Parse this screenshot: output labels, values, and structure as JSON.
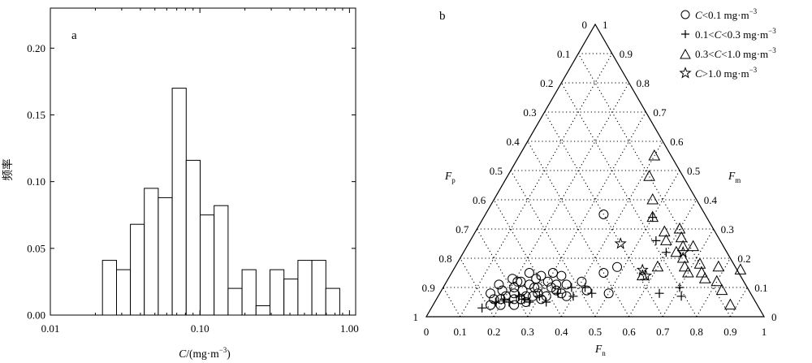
{
  "histogram": {
    "panel_label": "a",
    "ylabel": "频率",
    "xlabel_var": "C",
    "xlabel_unit": "/(mg·m",
    "xlabel_exp": "−3",
    "xlabel_close": ")",
    "y_ticks": [
      "0.00",
      "0.05",
      "0.10",
      "0.15",
      "0.20"
    ],
    "x_ticks": [
      "0.01",
      "0.10",
      "1.00"
    ]
  },
  "ternary": {
    "panel_label": "b",
    "axis_p": "F",
    "axis_p_sub": "p",
    "axis_m": "F",
    "axis_m_sub": "m",
    "axis_n": "F",
    "axis_n_sub": "n",
    "bottom_ticks": [
      "0",
      "0.1",
      "0.2",
      "0.3",
      "0.4",
      "0.5",
      "0.6",
      "0.7",
      "0.8",
      "0.9",
      "1"
    ],
    "left_ticks": [
      "0",
      "0.1",
      "0.2",
      "0.3",
      "0.4",
      "0.5",
      "0.6",
      "0.7",
      "0.8",
      "0.9",
      "1"
    ],
    "right_ticks": [
      "1",
      "0.9",
      "0.8",
      "0.7",
      "0.6",
      "0.5",
      "0.4",
      "0.3",
      "0.2",
      "0.1",
      "0"
    ]
  },
  "legend": [
    {
      "marker": "circle",
      "pre": "",
      "var": "C",
      "post": "<0.1 mg·m",
      "exp": "−3"
    },
    {
      "marker": "plus",
      "pre": "0.1<",
      "var": "C",
      "post": "<0.3 mg·m",
      "exp": "−3"
    },
    {
      "marker": "triangle",
      "pre": "0.3<",
      "var": "C",
      "post": "<1.0 mg·m",
      "exp": "−3"
    },
    {
      "marker": "star",
      "pre": "",
      "var": "C",
      "post": ">1.0 mg·m",
      "exp": "−3"
    }
  ],
  "chart_data": [
    {
      "type": "bar",
      "title": "",
      "xlabel": "C/(mg·m−3)",
      "ylabel": "频率",
      "xscale": "log",
      "xlim": [
        0.01,
        1.1
      ],
      "ylim": [
        0,
        0.23
      ],
      "grid": false,
      "bins": [
        {
          "from": 0.0223,
          "to": 0.0277,
          "value": 0.041
        },
        {
          "from": 0.0277,
          "to": 0.0343,
          "value": 0.034
        },
        {
          "from": 0.0343,
          "to": 0.0425,
          "value": 0.068
        },
        {
          "from": 0.0425,
          "to": 0.0527,
          "value": 0.095
        },
        {
          "from": 0.0527,
          "to": 0.0653,
          "value": 0.088
        },
        {
          "from": 0.0653,
          "to": 0.081,
          "value": 0.17
        },
        {
          "from": 0.081,
          "to": 0.1004,
          "value": 0.116
        },
        {
          "from": 0.1004,
          "to": 0.1245,
          "value": 0.075
        },
        {
          "from": 0.1245,
          "to": 0.1543,
          "value": 0.082
        },
        {
          "from": 0.1543,
          "to": 0.1913,
          "value": 0.02
        },
        {
          "from": 0.1913,
          "to": 0.2372,
          "value": 0.034
        },
        {
          "from": 0.2372,
          "to": 0.2941,
          "value": 0.007
        },
        {
          "from": 0.2941,
          "to": 0.3646,
          "value": 0.034
        },
        {
          "from": 0.3646,
          "to": 0.452,
          "value": 0.027
        },
        {
          "from": 0.452,
          "to": 0.5604,
          "value": 0.041
        },
        {
          "from": 0.5604,
          "to": 0.6947,
          "value": 0.041
        },
        {
          "from": 0.6947,
          "to": 0.8613,
          "value": 0.02
        }
      ]
    },
    {
      "type": "scatter",
      "subtype": "ternary",
      "title": "",
      "axes": [
        "Fn",
        "Fm",
        "Fp"
      ],
      "grid": true,
      "series": [
        {
          "name": "C<0.1 mg·m−3",
          "marker": "circle",
          "points": [
            [
              0.15,
              0.08,
              0.77
            ],
            [
              0.16,
              0.11,
              0.73
            ],
            [
              0.17,
              0.06,
              0.77
            ],
            [
              0.18,
              0.09,
              0.73
            ],
            [
              0.19,
              0.13,
              0.68
            ],
            [
              0.2,
              0.07,
              0.73
            ],
            [
              0.21,
              0.1,
              0.69
            ],
            [
              0.22,
              0.12,
              0.66
            ],
            [
              0.23,
              0.06,
              0.71
            ],
            [
              0.23,
              0.15,
              0.62
            ],
            [
              0.24,
              0.09,
              0.67
            ],
            [
              0.25,
              0.11,
              0.64
            ],
            [
              0.26,
              0.07,
              0.67
            ],
            [
              0.26,
              0.13,
              0.61
            ],
            [
              0.27,
              0.05,
              0.68
            ],
            [
              0.28,
              0.1,
              0.62
            ],
            [
              0.29,
              0.08,
              0.63
            ],
            [
              0.3,
              0.12,
              0.58
            ],
            [
              0.31,
              0.06,
              0.63
            ],
            [
              0.32,
              0.1,
              0.58
            ],
            [
              0.33,
              0.14,
              0.53
            ],
            [
              0.34,
              0.09,
              0.57
            ],
            [
              0.36,
              0.11,
              0.53
            ],
            [
              0.38,
              0.07,
              0.55
            ],
            [
              0.4,
              0.12,
              0.48
            ],
            [
              0.43,
              0.09,
              0.48
            ],
            [
              0.45,
              0.15,
              0.4
            ],
            [
              0.48,
              0.17,
              0.35
            ],
            [
              0.5,
              0.08,
              0.42
            ],
            [
              0.35,
              0.35,
              0.3
            ],
            [
              0.17,
              0.04,
              0.79
            ],
            [
              0.2,
              0.04,
              0.76
            ],
            [
              0.24,
              0.04,
              0.72
            ],
            [
              0.27,
              0.14,
              0.59
            ],
            [
              0.3,
              0.15,
              0.55
            ],
            [
              0.22,
              0.08,
              0.7
            ],
            [
              0.19,
              0.06,
              0.75
            ],
            [
              0.25,
              0.06,
              0.69
            ],
            [
              0.28,
              0.07,
              0.65
            ],
            [
              0.32,
              0.07,
              0.61
            ],
            [
              0.21,
              0.12,
              0.67
            ],
            [
              0.27,
              0.1,
              0.63
            ],
            [
              0.33,
              0.11,
              0.56
            ],
            [
              0.36,
              0.08,
              0.56
            ]
          ]
        },
        {
          "name": "0.1<C<0.3 mg·m−3",
          "marker": "plus",
          "points": [
            [
              0.15,
              0.03,
              0.82
            ],
            [
              0.18,
              0.05,
              0.77
            ],
            [
              0.2,
              0.06,
              0.74
            ],
            [
              0.22,
              0.05,
              0.73
            ],
            [
              0.24,
              0.07,
              0.69
            ],
            [
              0.26,
              0.06,
              0.68
            ],
            [
              0.28,
              0.05,
              0.67
            ],
            [
              0.3,
              0.07,
              0.63
            ],
            [
              0.33,
              0.05,
              0.62
            ],
            [
              0.35,
              0.08,
              0.57
            ],
            [
              0.38,
              0.1,
              0.52
            ],
            [
              0.42,
              0.1,
              0.48
            ],
            [
              0.45,
              0.08,
              0.47
            ],
            [
              0.5,
              0.34,
              0.16
            ],
            [
              0.55,
              0.26,
              0.19
            ],
            [
              0.6,
              0.22,
              0.18
            ],
            [
              0.65,
              0.08,
              0.27
            ],
            [
              0.7,
              0.1,
              0.2
            ],
            [
              0.72,
              0.07,
              0.21
            ],
            [
              0.4,
              0.07,
              0.53
            ]
          ]
        },
        {
          "name": "0.3<C<1.0 mg·m−3",
          "marker": "triangle",
          "points": [
            [
              0.4,
              0.55,
              0.05
            ],
            [
              0.42,
              0.48,
              0.1
            ],
            [
              0.47,
              0.4,
              0.13
            ],
            [
              0.5,
              0.34,
              0.16
            ],
            [
              0.56,
              0.29,
              0.15
            ],
            [
              0.58,
              0.26,
              0.16
            ],
            [
              0.6,
              0.3,
              0.1
            ],
            [
              0.62,
              0.27,
              0.11
            ],
            [
              0.64,
              0.24,
              0.12
            ],
            [
              0.66,
              0.2,
              0.14
            ],
            [
              0.68,
              0.17,
              0.15
            ],
            [
              0.7,
              0.15,
              0.15
            ],
            [
              0.72,
              0.18,
              0.1
            ],
            [
              0.74,
              0.15,
              0.11
            ],
            [
              0.76,
              0.13,
              0.11
            ],
            [
              0.78,
              0.17,
              0.05
            ],
            [
              0.8,
              0.12,
              0.08
            ],
            [
              0.83,
              0.09,
              0.08
            ],
            [
              0.85,
              0.16,
              -0.01
            ],
            [
              0.88,
              0.04,
              0.08
            ],
            [
              0.67,
              0.24,
              0.09
            ],
            [
              0.63,
              0.22,
              0.15
            ],
            [
              0.57,
              0.14,
              0.29
            ],
            [
              0.6,
              0.17,
              0.23
            ]
          ]
        },
        {
          "name": "C>1.0 mg·m−3",
          "marker": "star",
          "points": [
            [
              0.45,
              0.25,
              0.3
            ],
            [
              0.56,
              0.16,
              0.28
            ],
            [
              0.65,
              0.22,
              0.13
            ],
            [
              0.58,
              0.14,
              0.28
            ]
          ]
        }
      ]
    }
  ]
}
